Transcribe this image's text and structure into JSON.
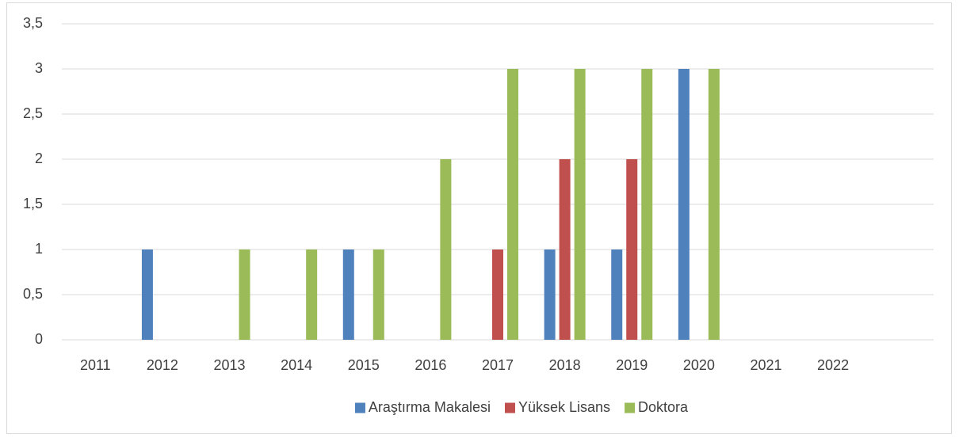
{
  "chart_data": {
    "type": "bar",
    "categories": [
      "2011",
      "2012",
      "2013",
      "2014",
      "2015",
      "2016",
      "2017",
      "2018",
      "2019",
      "2020",
      "2021",
      "2022",
      null
    ],
    "series": [
      {
        "name": "Araştırma Makalesi",
        "color": "#4f81bd",
        "values": [
          0,
          1,
          0,
          0,
          1,
          0,
          0,
          1,
          1,
          3,
          0,
          0,
          null
        ]
      },
      {
        "name": "Yüksek Lisans",
        "color": "#c0504d",
        "values": [
          0,
          0,
          0,
          0,
          0,
          0,
          1,
          2,
          2,
          0,
          0,
          0,
          null
        ]
      },
      {
        "name": "Doktora",
        "color": "#9bbb59",
        "values": [
          0,
          0,
          1,
          1,
          1,
          2,
          3,
          3,
          3,
          3,
          0,
          0,
          null
        ]
      }
    ],
    "ylim": [
      0,
      3.5
    ],
    "yticks": [
      0,
      {
        "value": 0.5,
        "label": "0,5"
      },
      1,
      {
        "value": 1.5,
        "label": "1,5"
      },
      2,
      {
        "value": 2.5,
        "label": "2,5"
      },
      3,
      {
        "value": 3.5,
        "label": "3,5"
      }
    ],
    "grid": true,
    "legend": "bottom"
  }
}
